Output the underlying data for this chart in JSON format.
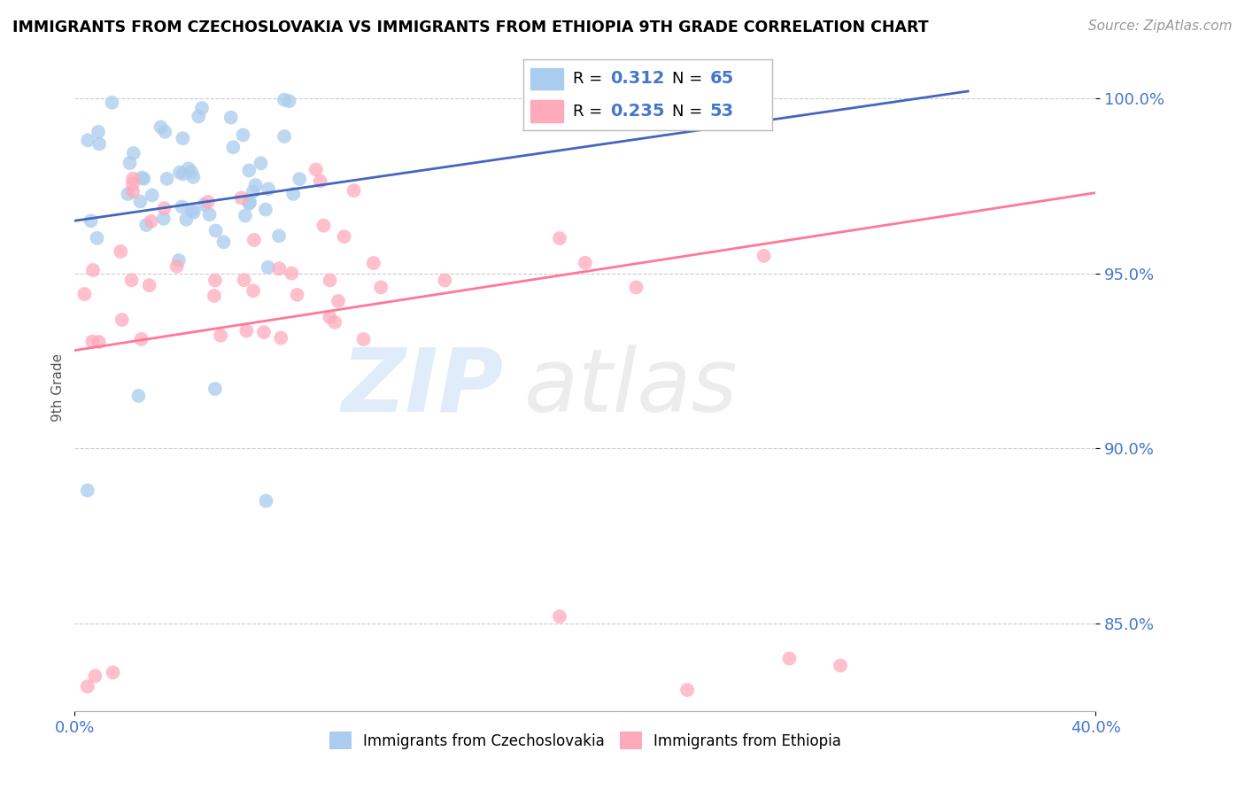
{
  "title": "IMMIGRANTS FROM CZECHOSLOVAKIA VS IMMIGRANTS FROM ETHIOPIA 9TH GRADE CORRELATION CHART",
  "source": "Source: ZipAtlas.com",
  "legend_label1": "Immigrants from Czechoslovakia",
  "legend_label2": "Immigrants from Ethiopia",
  "R1": 0.312,
  "N1": 65,
  "R2": 0.235,
  "N2": 53,
  "color_czech": "#aaccee",
  "color_ethiopia": "#ffaabb",
  "color_line_czech": "#4466bb",
  "color_line_ethiopia": "#ff7799",
  "color_text_blue": "#4477cc",
  "ylabel": "9th Grade",
  "xlim": [
    0.0,
    0.4
  ],
  "ylim": [
    0.825,
    1.01
  ],
  "yticks": [
    0.85,
    0.9,
    0.95,
    1.0
  ],
  "ytick_labels": [
    "85.0%",
    "90.0%",
    "95.0%",
    "100.0%"
  ],
  "czech_trend_x": [
    0.0,
    0.35
  ],
  "czech_trend_y": [
    0.965,
    1.002
  ],
  "eth_trend_x": [
    0.0,
    0.4
  ],
  "eth_trend_y": [
    0.928,
    0.973
  ]
}
